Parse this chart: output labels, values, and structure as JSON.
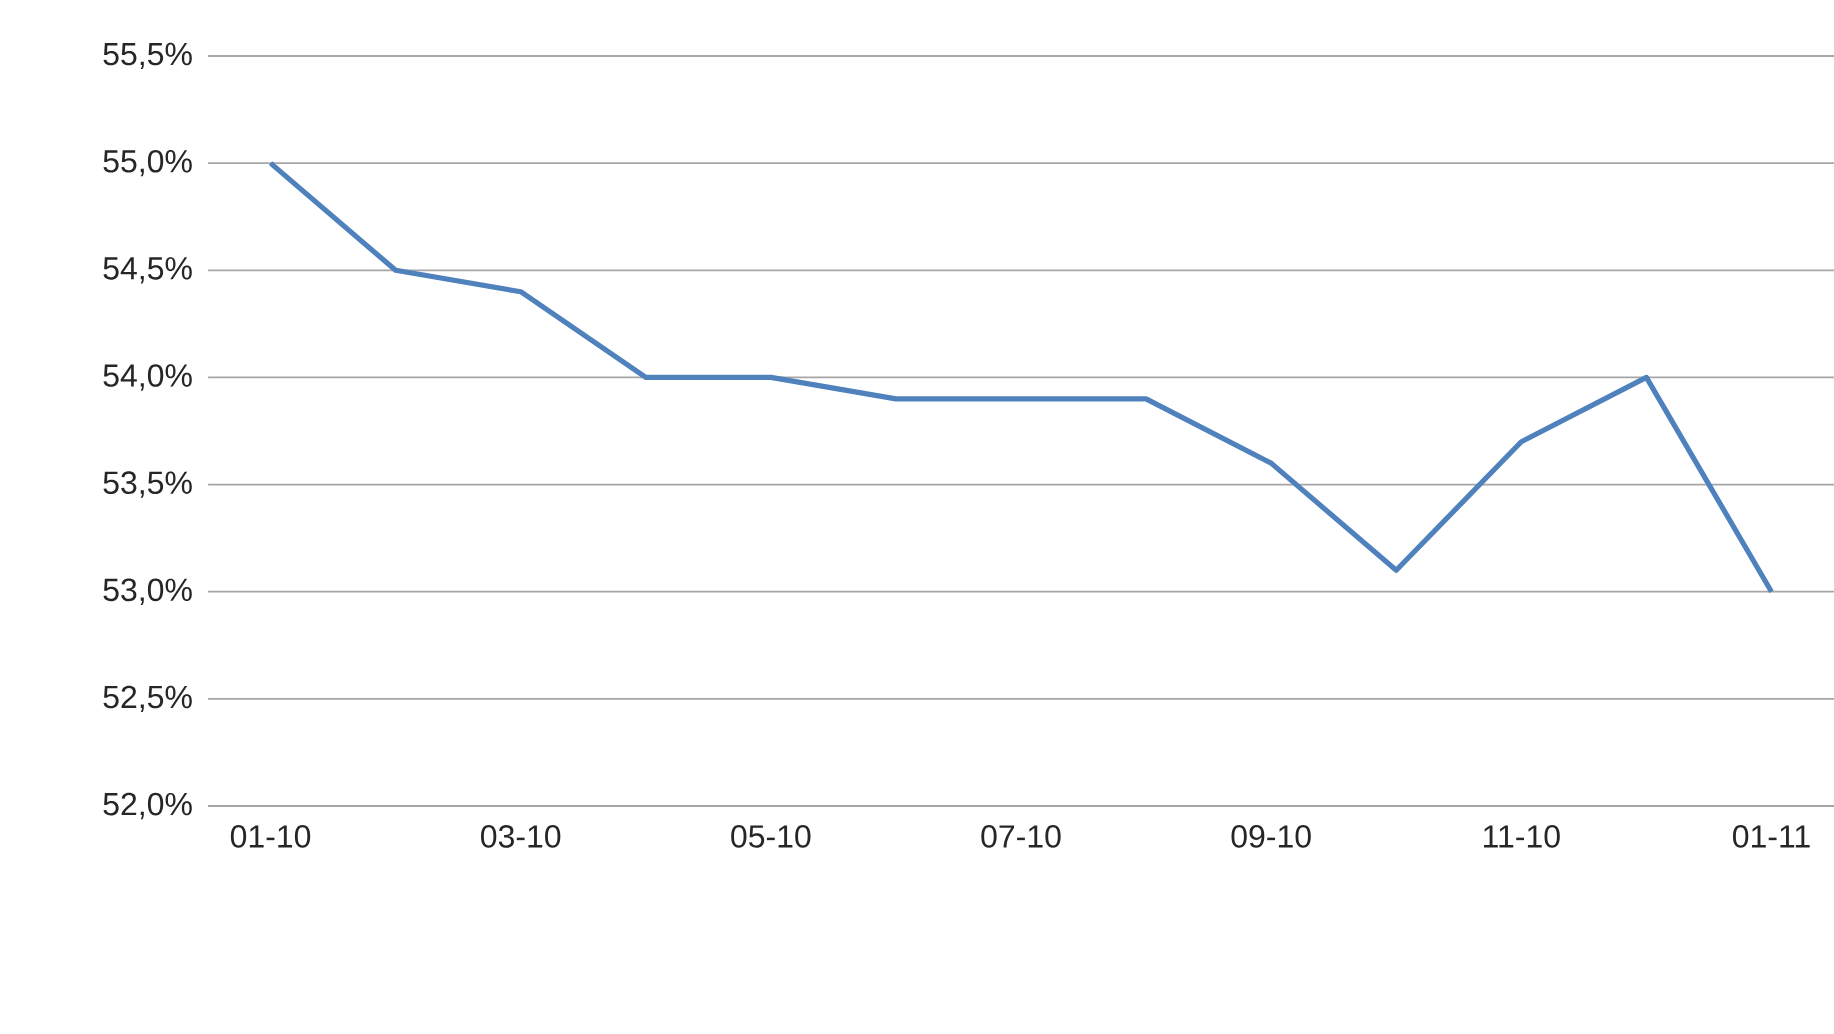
{
  "chart_data": {
    "type": "line",
    "categories": [
      "01-10",
      null,
      "03-10",
      null,
      "05-10",
      null,
      "07-10",
      null,
      "09-10",
      null,
      "11-10",
      null,
      "01-11"
    ],
    "series": [
      {
        "color": "#4f81bd",
        "values": [
          55.0,
          54.5,
          54.4,
          54.0,
          54.0,
          53.9,
          53.9,
          53.9,
          53.6,
          53.1,
          53.7,
          54.0,
          53.0
        ]
      }
    ],
    "ylim": [
      52.0,
      55.5
    ],
    "yticks": [
      {
        "value": 52.0,
        "label": "52,0%"
      },
      {
        "value": 52.5,
        "label": "52,5%"
      },
      {
        "value": 53.0,
        "label": "53,0%"
      },
      {
        "value": 53.5,
        "label": "53,5%"
      },
      {
        "value": 54.0,
        "label": "54,0%"
      },
      {
        "value": 54.5,
        "label": "54,5%"
      },
      {
        "value": 55.0,
        "label": "55,0%"
      },
      {
        "value": 55.5,
        "label": "55,5%"
      }
    ],
    "grid": "y"
  }
}
